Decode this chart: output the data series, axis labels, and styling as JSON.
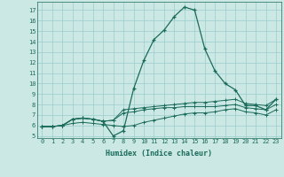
{
  "xlabel": "Humidex (Indice chaleur)",
  "bg_color": "#cce8e4",
  "grid_color": "#99cccc",
  "line_color": "#1a6b5a",
  "xlim": [
    -0.5,
    23.5
  ],
  "ylim": [
    4.8,
    17.8
  ],
  "xticks": [
    0,
    1,
    2,
    3,
    4,
    5,
    6,
    7,
    8,
    9,
    10,
    11,
    12,
    13,
    14,
    15,
    16,
    17,
    18,
    19,
    20,
    21,
    22,
    23
  ],
  "yticks": [
    5,
    6,
    7,
    8,
    9,
    10,
    11,
    12,
    13,
    14,
    15,
    16,
    17
  ],
  "series": [
    [
      5.9,
      5.9,
      6.0,
      6.6,
      6.7,
      6.6,
      6.4,
      5.0,
      5.5,
      9.5,
      12.2,
      14.2,
      15.1,
      16.4,
      17.3,
      17.0,
      13.3,
      11.2,
      10.0,
      9.4,
      7.9,
      7.9,
      7.5,
      8.5
    ],
    [
      5.9,
      5.9,
      6.0,
      6.6,
      6.7,
      6.6,
      6.4,
      6.5,
      7.5,
      7.6,
      7.7,
      7.8,
      7.9,
      8.0,
      8.1,
      8.2,
      8.2,
      8.3,
      8.4,
      8.5,
      8.1,
      8.0,
      7.9,
      8.5
    ],
    [
      5.9,
      5.9,
      6.0,
      6.6,
      6.7,
      6.6,
      6.4,
      6.5,
      7.2,
      7.3,
      7.5,
      7.6,
      7.7,
      7.7,
      7.8,
      7.8,
      7.8,
      7.8,
      7.9,
      8.0,
      7.7,
      7.6,
      7.5,
      8.0
    ],
    [
      5.9,
      5.9,
      6.0,
      6.2,
      6.3,
      6.2,
      6.1,
      6.0,
      5.9,
      6.0,
      6.3,
      6.5,
      6.7,
      6.9,
      7.1,
      7.2,
      7.2,
      7.3,
      7.5,
      7.6,
      7.3,
      7.2,
      7.0,
      7.5
    ]
  ]
}
